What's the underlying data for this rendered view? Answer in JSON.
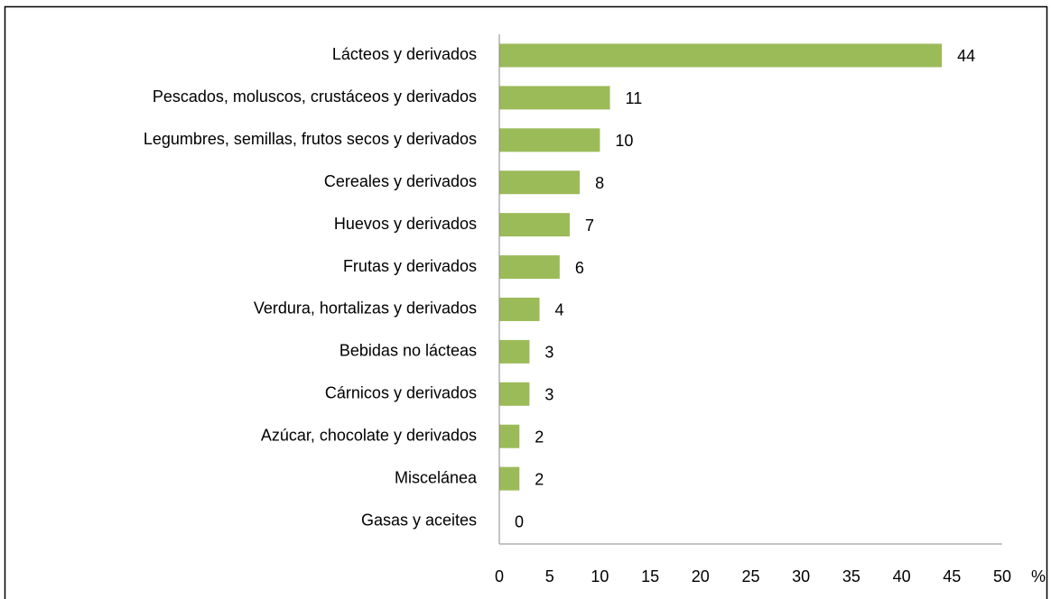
{
  "chart_data": {
    "type": "barh",
    "categories": [
      "Lácteos y derivados",
      "Pescados, moluscos, crustáceos y derivados",
      "Legumbres, semillas, frutos secos y derivados",
      "Cereales y derivados",
      "Huevos y derivados",
      "Frutas y derivados",
      "Verdura, hortalizas y derivados",
      "Bebidas no lácteas",
      "Cárnicos y derivados",
      "Azúcar, chocolate y derivados",
      "Miscelánea",
      "Gasas y aceites"
    ],
    "values": [
      44,
      11,
      10,
      8,
      7,
      6,
      4,
      3,
      3,
      2,
      2,
      0
    ],
    "color": "#9bbb59",
    "x_label": "%",
    "xlim": [
      0,
      50
    ],
    "xticks": [
      0,
      5,
      10,
      15,
      20,
      25,
      30,
      35,
      40,
      45,
      50
    ],
    "grid": false
  }
}
